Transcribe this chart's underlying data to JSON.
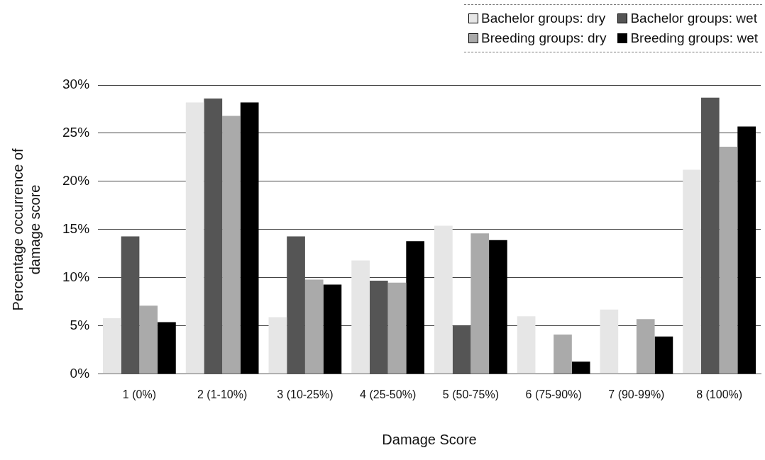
{
  "chart_data": {
    "type": "bar",
    "xlabel": "Damage Score",
    "ylabel": "Percentage occurrence of damage score",
    "categories": [
      "1 (0%)",
      "2 (1-10%)",
      "3 (10-25%)",
      "4 (25-50%)",
      "5 (50-75%)",
      "6 (75-90%)",
      "7 (90-99%)",
      "8 (100%)"
    ],
    "series": [
      {
        "name": "Bachelor groups: dry",
        "color": "#e6e6e6",
        "values": [
          5.8,
          28.2,
          5.9,
          11.8,
          15.4,
          6.0,
          6.7,
          21.2
        ]
      },
      {
        "name": "Bachelor groups: wet",
        "color": "#555555",
        "values": [
          14.3,
          28.6,
          14.3,
          9.7,
          5.0,
          0,
          0,
          28.7
        ]
      },
      {
        "name": "Breeding groups: dry",
        "color": "#aaaaaa",
        "values": [
          7.1,
          26.8,
          9.8,
          9.5,
          14.6,
          4.1,
          5.7,
          23.6
        ]
      },
      {
        "name": "Breeding groups: wet",
        "color": "#000000",
        "values": [
          5.4,
          28.2,
          9.3,
          13.8,
          13.9,
          1.3,
          3.9,
          25.7
        ]
      }
    ],
    "ylim": [
      0,
      30
    ],
    "yticks": [
      {
        "value": 0,
        "label": "0%"
      },
      {
        "value": 5,
        "label": "5%"
      },
      {
        "value": 10,
        "label": "10%"
      },
      {
        "value": 15,
        "label": "15%"
      },
      {
        "value": 20,
        "label": "20%"
      },
      {
        "value": 25,
        "label": "25%"
      },
      {
        "value": 30,
        "label": "30%"
      }
    ],
    "grid": "y",
    "legend": "top right"
  }
}
